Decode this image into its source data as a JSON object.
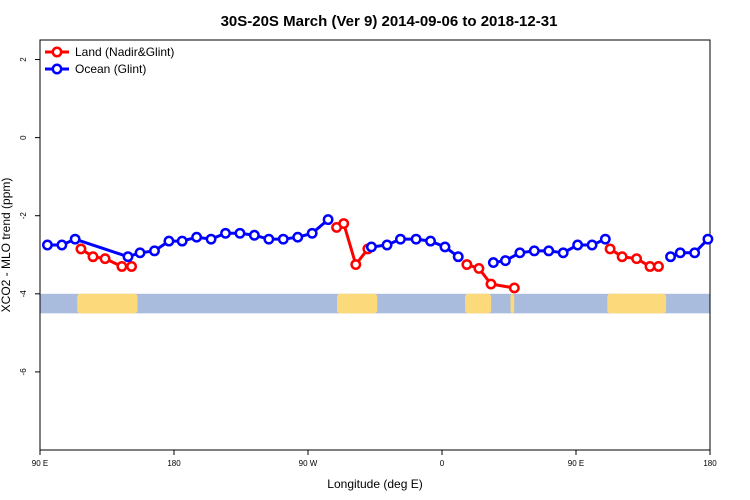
{
  "chart_data": {
    "type": "line",
    "title": "30S-20S March (Ver 9)   2014-09-06 to 2018-12-31",
    "xlabel": "Longitude (deg E)",
    "ylabel": "XCO2 - MLO trend (ppm)",
    "xlim": [
      90,
      540
    ],
    "ylim": [
      -8.0,
      2.5
    ],
    "x_ticks": [
      {
        "value": 90,
        "label": "90 E"
      },
      {
        "value": 180,
        "label": "180"
      },
      {
        "value": 270,
        "label": "90 W"
      },
      {
        "value": 360,
        "label": "0"
      },
      {
        "value": 450,
        "label": "90 E"
      },
      {
        "value": 540,
        "label": "180"
      }
    ],
    "y_ticks": [
      {
        "value": 2,
        "label": "2"
      },
      {
        "value": 0,
        "label": "0"
      },
      {
        "value": -2,
        "label": "-2"
      },
      {
        "value": -4,
        "label": "-4"
      },
      {
        "value": -6,
        "label": "-6"
      }
    ],
    "grid": false,
    "legend_position": "top-left",
    "series": [
      {
        "name": "Land (Nadir&Glint)",
        "color": "#ff0000",
        "segments": [
          [
            [
              117.5,
              -2.85
            ],
            [
              125.6,
              -3.05
            ],
            [
              133.7,
              -3.1
            ],
            [
              145.0,
              -3.3
            ],
            [
              151.5,
              -3.3
            ]
          ],
          [
            [
              289.2,
              -2.3
            ],
            [
              294.0,
              -2.2
            ],
            [
              302.1,
              -3.25
            ],
            [
              310.2,
              -2.85
            ]
          ],
          [
            [
              376.7,
              -3.25
            ],
            [
              384.8,
              -3.35
            ],
            [
              392.9,
              -3.75
            ],
            [
              408.6,
              -3.85
            ]
          ],
          [
            [
              472.9,
              -2.85
            ],
            [
              481.0,
              -3.05
            ],
            [
              490.7,
              -3.1
            ],
            [
              499.7,
              -3.3
            ],
            [
              505.4,
              -3.3
            ]
          ]
        ]
      },
      {
        "name": "Ocean (Glint)",
        "color": "#0000ff",
        "segments": [
          [
            [
              95.0,
              -2.75
            ],
            [
              104.7,
              -2.75
            ],
            [
              113.6,
              -2.6
            ],
            [
              149.1,
              -3.05
            ],
            [
              157.2,
              -2.95
            ],
            [
              166.9,
              -2.9
            ],
            [
              176.6,
              -2.65
            ],
            [
              185.5,
              -2.65
            ],
            [
              195.2,
              -2.55
            ],
            [
              204.9,
              -2.6
            ],
            [
              214.6,
              -2.45
            ],
            [
              224.3,
              -2.45
            ],
            [
              234.0,
              -2.5
            ],
            [
              243.7,
              -2.6
            ],
            [
              253.4,
              -2.6
            ],
            [
              263.1,
              -2.55
            ],
            [
              272.8,
              -2.45
            ],
            [
              283.5,
              -2.1
            ]
          ],
          [
            [
              312.6,
              -2.8
            ],
            [
              323.1,
              -2.75
            ],
            [
              332.1,
              -2.6
            ],
            [
              342.6,
              -2.6
            ],
            [
              352.3,
              -2.65
            ],
            [
              362.0,
              -2.8
            ],
            [
              370.9,
              -3.05
            ]
          ],
          [
            [
              394.5,
              -3.2
            ],
            [
              402.6,
              -3.15
            ],
            [
              412.3,
              -2.95
            ],
            [
              422.0,
              -2.9
            ],
            [
              431.7,
              -2.9
            ],
            [
              441.4,
              -2.95
            ],
            [
              451.1,
              -2.75
            ],
            [
              460.8,
              -2.75
            ],
            [
              469.7,
              -2.6
            ]
          ],
          [
            [
              513.5,
              -3.05
            ],
            [
              520.0,
              -2.95
            ],
            [
              529.7,
              -2.95
            ],
            [
              538.6,
              -2.6
            ]
          ]
        ]
      }
    ],
    "map_strip": {
      "y_range": [
        -4.5,
        -4.0
      ],
      "ocean_color": "#a9bcdd",
      "land_color": "#fcd97b",
      "land_ranges": [
        [
          115.0,
          155.5
        ],
        [
          289.5,
          316.5
        ],
        [
          375.5,
          393.0
        ],
        [
          406.0,
          408.5
        ],
        [
          471.0,
          510.5
        ]
      ]
    }
  }
}
